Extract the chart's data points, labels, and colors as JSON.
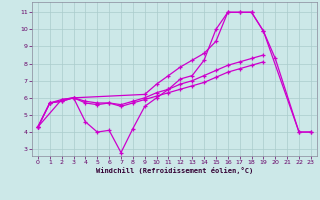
{
  "bg_color": "#cce8e8",
  "line_color": "#cc00cc",
  "grid_color": "#aacccc",
  "xlabel": "Windchill (Refroidissement éolien,°C)",
  "xlim": [
    -0.5,
    23.5
  ],
  "ylim": [
    2.6,
    11.6
  ],
  "yticks": [
    3,
    4,
    5,
    6,
    7,
    8,
    9,
    10,
    11
  ],
  "xticks": [
    0,
    1,
    2,
    3,
    4,
    5,
    6,
    7,
    8,
    9,
    10,
    11,
    12,
    13,
    14,
    15,
    16,
    17,
    18,
    19,
    20,
    21,
    22,
    23
  ],
  "series": [
    {
      "x": [
        0,
        1,
        2,
        3,
        4,
        5,
        6,
        7,
        8,
        9,
        10,
        11,
        12,
        13,
        14,
        15,
        16,
        17,
        18,
        19,
        22,
        23
      ],
      "y": [
        4.3,
        5.7,
        5.8,
        6.0,
        4.6,
        4.0,
        4.1,
        2.8,
        4.2,
        5.5,
        6.0,
        6.5,
        7.1,
        7.3,
        8.2,
        10.0,
        11.0,
        11.0,
        11.0,
        9.9,
        4.0,
        4.0
      ]
    },
    {
      "x": [
        0,
        2,
        3,
        9,
        10,
        11,
        12,
        13,
        14,
        15,
        16,
        17,
        18,
        19,
        20,
        22,
        23
      ],
      "y": [
        4.3,
        5.9,
        6.0,
        6.2,
        6.8,
        7.3,
        7.8,
        8.2,
        8.6,
        9.3,
        11.0,
        11.0,
        11.0,
        9.9,
        8.3,
        4.0,
        4.0
      ]
    },
    {
      "x": [
        0,
        1,
        2,
        3,
        4,
        5,
        6,
        7,
        8,
        9,
        10,
        11,
        12,
        13,
        14,
        15,
        16,
        17,
        18,
        19
      ],
      "y": [
        4.3,
        5.7,
        5.9,
        6.0,
        5.8,
        5.7,
        5.7,
        5.6,
        5.8,
        6.0,
        6.3,
        6.5,
        6.8,
        7.0,
        7.3,
        7.6,
        7.9,
        8.1,
        8.3,
        8.5
      ]
    },
    {
      "x": [
        0,
        1,
        2,
        3,
        4,
        5,
        6,
        7,
        8,
        9,
        10,
        11,
        12,
        13,
        14,
        15,
        16,
        17,
        18,
        19
      ],
      "y": [
        4.3,
        5.7,
        5.8,
        6.0,
        5.7,
        5.6,
        5.7,
        5.5,
        5.7,
        5.9,
        6.1,
        6.3,
        6.5,
        6.7,
        6.9,
        7.2,
        7.5,
        7.7,
        7.9,
        8.1
      ]
    }
  ]
}
